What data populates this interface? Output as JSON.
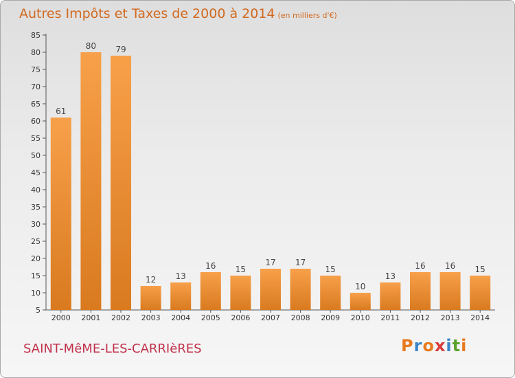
{
  "chart_data": {
    "type": "bar",
    "title": "Autres Impôts et Taxes de 2000 à 2014",
    "unit_note": "(en milliers d'€)",
    "categories": [
      "2000",
      "2001",
      "2002",
      "2003",
      "2004",
      "2005",
      "2006",
      "2007",
      "2008",
      "2009",
      "2010",
      "2011",
      "2012",
      "2013",
      "2014"
    ],
    "values": [
      61,
      80,
      79,
      12,
      13,
      16,
      15,
      17,
      17,
      15,
      10,
      13,
      16,
      16,
      15
    ],
    "ylim": [
      5,
      85
    ],
    "yticks": [
      5,
      10,
      15,
      20,
      25,
      30,
      35,
      40,
      45,
      50,
      55,
      60,
      65,
      70,
      75,
      80,
      85
    ],
    "grid": false,
    "bar_color": "#f7a04a",
    "bar_color_dark": "#d97a1f"
  },
  "footer": {
    "commune": "SAINT-MêME-LES-CARRIèRES",
    "logo_letters": [
      "P",
      "r",
      "o",
      "x",
      "i",
      "t",
      "i"
    ],
    "logo_colors": [
      "#e87a1e",
      "#3a86c8",
      "#e87a1e",
      "#d83a3a",
      "#3a86c8",
      "#5aa02c",
      "#e87a1e"
    ]
  }
}
